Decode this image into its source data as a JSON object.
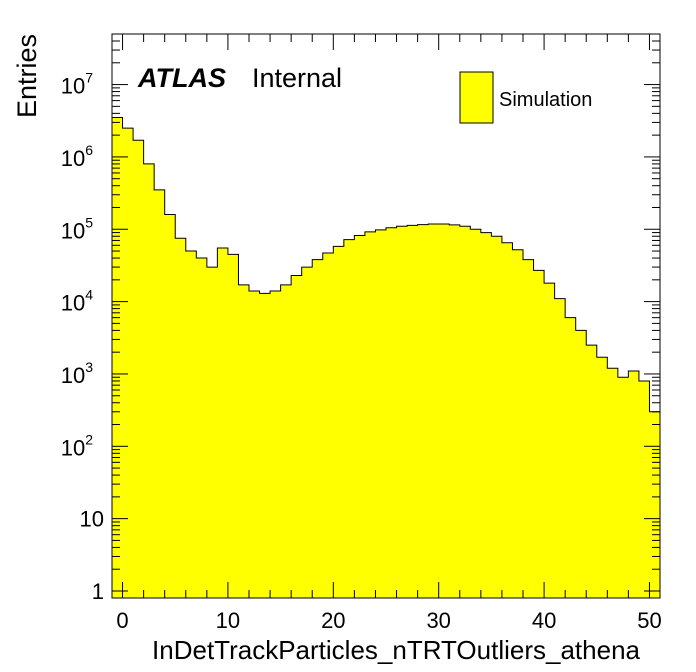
{
  "chart_data": {
    "type": "bar",
    "style": "histogram",
    "xlabel": "InDetTrackParticles_nTRTOutliers_athena",
    "ylabel": "Entries",
    "label_bold": "ATLAS",
    "label_normal": "Internal",
    "legend_position": "top-right",
    "xlim": [
      -1,
      51
    ],
    "ylim": [
      0.8,
      50000000
    ],
    "log_y": true,
    "grid": false,
    "x_ticks": [
      {
        "value": 0,
        "label": "0"
      },
      {
        "value": 10,
        "label": "10"
      },
      {
        "value": 20,
        "label": "20"
      },
      {
        "value": 30,
        "label": "30"
      },
      {
        "value": 40,
        "label": "40"
      },
      {
        "value": 50,
        "label": "50"
      }
    ],
    "y_ticks": [
      {
        "value": 1,
        "base": "1",
        "exp": ""
      },
      {
        "value": 10,
        "base": "10",
        "exp": ""
      },
      {
        "value": 100,
        "base": "10",
        "exp": "2"
      },
      {
        "value": 1000,
        "base": "10",
        "exp": "3"
      },
      {
        "value": 10000,
        "base": "10",
        "exp": "4"
      },
      {
        "value": 100000,
        "base": "10",
        "exp": "5"
      },
      {
        "value": 1000000,
        "base": "10",
        "exp": "6"
      },
      {
        "value": 10000000,
        "base": "10",
        "exp": "7"
      }
    ],
    "colors": {
      "fill": "#ffff00",
      "line": "#000000"
    },
    "series": [
      {
        "name": "Simulation",
        "bin_edges": [
          -1,
          0,
          1,
          2,
          3,
          4,
          5,
          6,
          7,
          8,
          9,
          10,
          11,
          12,
          13,
          14,
          15,
          16,
          17,
          18,
          19,
          20,
          21,
          22,
          23,
          24,
          25,
          26,
          27,
          28,
          29,
          30,
          31,
          32,
          33,
          34,
          35,
          36,
          37,
          38,
          39,
          40,
          41,
          42,
          43,
          44,
          45,
          46,
          47,
          48,
          49,
          50,
          51
        ],
        "values": [
          3500000,
          2500000,
          1700000,
          800000,
          350000,
          160000,
          75000,
          50000,
          40000,
          30000,
          55000,
          45000,
          17000,
          14000,
          13000,
          14000,
          17000,
          23000,
          30000,
          38000,
          47000,
          58000,
          72000,
          82000,
          92000,
          98000,
          105000,
          110000,
          113000,
          116000,
          118000,
          118000,
          115000,
          110000,
          100000,
          90000,
          80000,
          65000,
          52000,
          38000,
          27000,
          18000,
          11000,
          6000,
          4000,
          2500,
          1700,
          1200,
          900,
          1100,
          800,
          300
        ]
      }
    ]
  }
}
